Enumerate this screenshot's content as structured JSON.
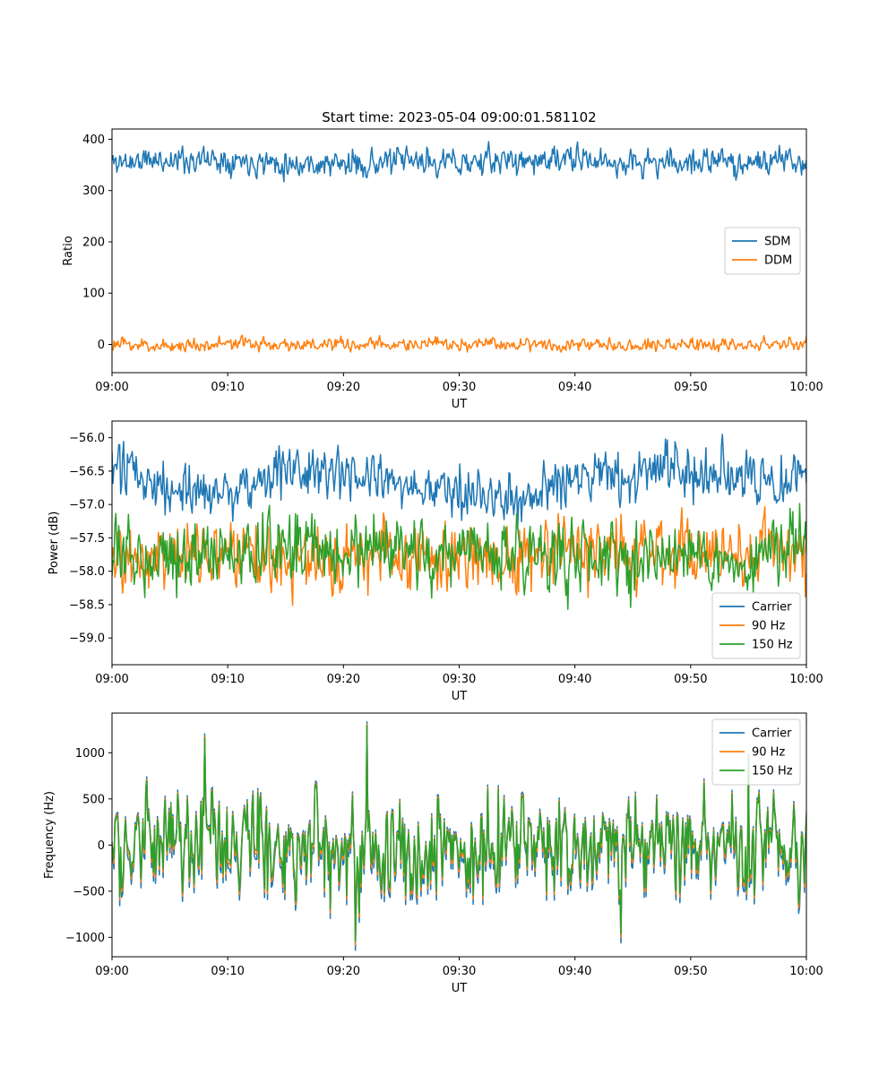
{
  "figure": {
    "title": "Start time: 2023-05-04 09:00:01.581102"
  },
  "colors": {
    "blue": "#1f77b4",
    "orange": "#ff7f0e",
    "green": "#2ca02c"
  },
  "chart_data": [
    {
      "type": "line",
      "title": "Start time: 2023-05-04 09:00:01.581102",
      "xlabel": "UT",
      "ylabel": "Ratio",
      "xlim": [
        "09:00",
        "10:00"
      ],
      "ylim": [
        -55,
        420
      ],
      "xticks": [
        "09:00",
        "09:10",
        "09:20",
        "09:30",
        "09:40",
        "09:50",
        "10:00"
      ],
      "yticks": [
        0,
        100,
        200,
        300,
        400
      ],
      "ytick_labels": [
        "0",
        "100",
        "200",
        "300",
        "400"
      ],
      "legend": "center-right",
      "grid": false,
      "x": [
        "09:00",
        "09:05",
        "09:10",
        "09:15",
        "09:20",
        "09:25",
        "09:30",
        "09:35",
        "09:40",
        "09:45",
        "09:50",
        "09:55",
        "10:00"
      ],
      "series": [
        {
          "name": "SDM",
          "color": "#1f77b4",
          "values": [
            355,
            360,
            362,
            354,
            350,
            357,
            355,
            358,
            360,
            352,
            356,
            355,
            358
          ],
          "noise": 18,
          "seed": 11
        },
        {
          "name": "DDM",
          "color": "#ff7f0e",
          "values": [
            0,
            -3,
            2,
            0,
            -2,
            1,
            -1,
            2,
            0,
            1,
            -1,
            0,
            3
          ],
          "noise": 9,
          "seed": 23
        }
      ]
    },
    {
      "type": "line",
      "xlabel": "UT",
      "ylabel": "Power (dB)",
      "xlim": [
        "09:00",
        "10:00"
      ],
      "ylim": [
        -59.4,
        -55.75
      ],
      "xticks": [
        "09:00",
        "09:10",
        "09:20",
        "09:30",
        "09:40",
        "09:50",
        "10:00"
      ],
      "yticks": [
        -56.0,
        -56.5,
        -57.0,
        -57.5,
        -58.0,
        -58.5,
        -59.0
      ],
      "ytick_labels": [
        "−56.0",
        "−56.5",
        "−57.0",
        "−57.5",
        "−58.0",
        "−58.5",
        "−59.0"
      ],
      "legend": "lower-right",
      "grid": false,
      "x": [
        "09:00",
        "09:05",
        "09:10",
        "09:15",
        "09:20",
        "09:25",
        "09:30",
        "09:35",
        "09:40",
        "09:45",
        "09:50",
        "09:55",
        "10:00"
      ],
      "series": [
        {
          "name": "Carrier",
          "color": "#1f77b4",
          "values": [
            -56.5,
            -56.7,
            -56.8,
            -56.5,
            -56.6,
            -56.7,
            -56.8,
            -57.0,
            -56.6,
            -56.6,
            -56.5,
            -56.6,
            -56.5
          ],
          "noise": 0.28,
          "seed": 31
        },
        {
          "name": "90 Hz",
          "color": "#ff7f0e",
          "values": [
            -57.7,
            -57.8,
            -57.6,
            -57.8,
            -57.8,
            -57.7,
            -57.8,
            -57.9,
            -57.7,
            -57.8,
            -57.6,
            -57.7,
            -57.7
          ],
          "noise": 0.35,
          "seed": 47
        },
        {
          "name": "150 Hz",
          "color": "#2ca02c",
          "values": [
            -57.8,
            -57.7,
            -57.8,
            -57.6,
            -57.7,
            -57.7,
            -57.8,
            -57.7,
            -57.8,
            -57.8,
            -57.7,
            -57.9,
            -57.5
          ],
          "noise": 0.35,
          "seed": 53
        }
      ]
    },
    {
      "type": "line",
      "xlabel": "UT",
      "ylabel": "Frequency (Hz)",
      "xlim": [
        "09:00",
        "10:00"
      ],
      "ylim": [
        -1210,
        1430
      ],
      "xticks": [
        "09:00",
        "09:10",
        "09:20",
        "09:30",
        "09:40",
        "09:50",
        "10:00"
      ],
      "yticks": [
        1000,
        500,
        0,
        -500,
        -1000
      ],
      "ytick_labels": [
        "1000",
        "500",
        "0",
        "−500",
        "−1000"
      ],
      "legend": "upper-right",
      "grid": false,
      "x": [
        "09:00",
        "09:05",
        "09:10",
        "09:15",
        "09:20",
        "09:25",
        "09:30",
        "09:35",
        "09:40",
        "09:45",
        "09:50",
        "09:55",
        "10:00"
      ],
      "base_noise": 380,
      "base_seed": 71,
      "spikes": [
        {
          "t": "09:08",
          "v": 1180
        },
        {
          "t": "09:22",
          "v": 1310
        },
        {
          "t": "09:21",
          "v": -1080
        },
        {
          "t": "09:44",
          "v": -1000
        },
        {
          "t": "09:55",
          "v": 960
        }
      ],
      "series": [
        {
          "name": "Carrier",
          "color": "#1f77b4",
          "offset": -60
        },
        {
          "name": "90 Hz",
          "color": "#ff7f0e",
          "offset": 0
        },
        {
          "name": "150 Hz",
          "color": "#2ca02c",
          "offset": 40
        }
      ]
    }
  ]
}
